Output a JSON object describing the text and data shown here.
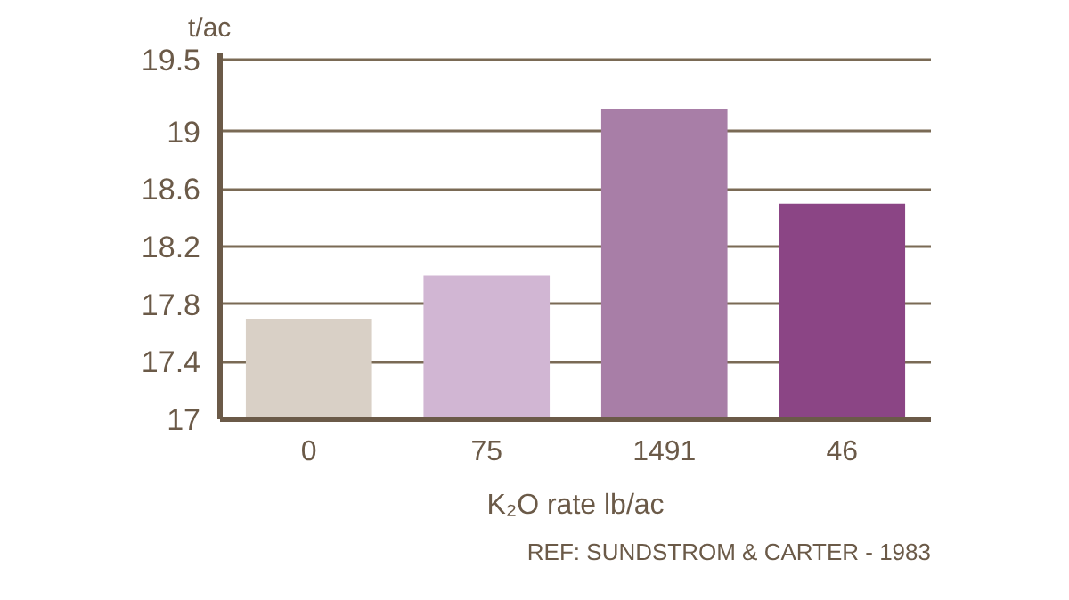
{
  "chart_data": {
    "type": "bar",
    "ylabel": "t/ac",
    "xlabel": "K₂O rate lb/ac",
    "categories": [
      "0",
      "75",
      "1491",
      "46"
    ],
    "values": [
      17.7,
      18.0,
      19.16,
      18.5
    ],
    "colors": [
      "#d9d0c6",
      "#d1b6d3",
      "#a87ea7",
      "#8b4585"
    ],
    "ylim": [
      17,
      19.55
    ],
    "yticks": [
      17,
      17.4,
      17.8,
      18.2,
      18.6,
      19,
      19.5
    ],
    "grid": "y",
    "annotations": [
      "REF: SUNDSTROM & CARTER - 1983"
    ]
  }
}
